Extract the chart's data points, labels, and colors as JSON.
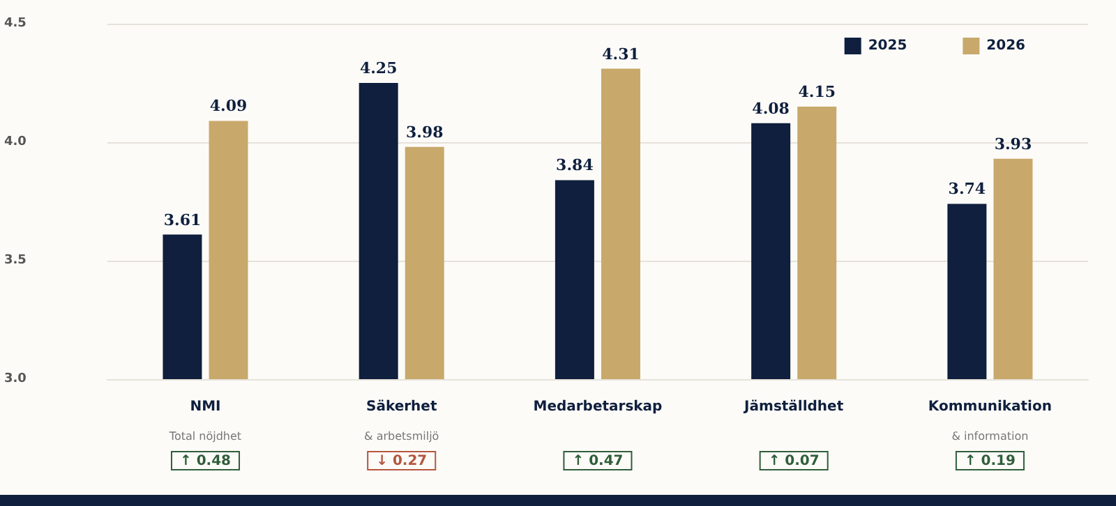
{
  "chart_data": {
    "type": "bar",
    "categories": [
      "NMI\nTotal nöjdhet",
      "Säkerhet\n& arbetsmiljö",
      "Medarbetarskap",
      "Jämställdhet",
      "Kommunikation\n& information"
    ],
    "series": [
      {
        "name": "2025",
        "color": "#0f1f3d",
        "values": [
          3.61,
          4.25,
          3.84,
          4.08,
          3.74
        ]
      },
      {
        "name": "2026",
        "color": "#c8a96b",
        "values": [
          4.09,
          3.98,
          4.31,
          4.15,
          3.93
        ]
      }
    ],
    "ylim": [
      3,
      4.5
    ],
    "yticks": [
      {
        "value": 3,
        "label": "3.0"
      },
      {
        "value": 3.5,
        "label": "3.5"
      },
      {
        "value": 4,
        "label": "4.0"
      },
      {
        "value": 4.5,
        "label": "4.5"
      }
    ],
    "grid": "y",
    "legend": "top right",
    "data_labels": true,
    "annotations": [
      "↑ 0.48",
      "↓ 0.27",
      "↑ 0.47",
      "↑ 0.07",
      "↑ 0.19"
    ]
  }
}
